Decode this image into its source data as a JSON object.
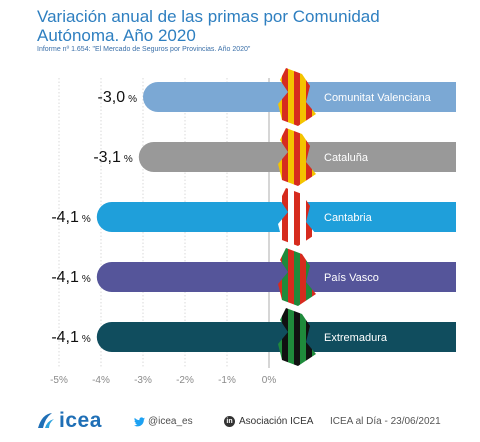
{
  "header": {
    "title": "Variación anual de las primas por Comunidad Autónoma. Año 2020",
    "subtitle": "Informe nº 1.654: \"El Mercado de Seguros por Provincias. Año 2020\""
  },
  "chart_data": {
    "type": "bar",
    "orientation": "horizontal",
    "categories": [
      "Comunitat Valenciana",
      "Cataluña",
      "Cantabria",
      "País Vasco",
      "Extremadura"
    ],
    "values": [
      -3.0,
      -3.1,
      -4.1,
      -4.1,
      -4.1
    ],
    "value_labels": [
      {
        "num": "-3,0",
        "unit": "%"
      },
      {
        "num": "-3,1",
        "unit": "%"
      },
      {
        "num": "-4,1",
        "unit": "%"
      },
      {
        "num": "-4,1",
        "unit": "%"
      },
      {
        "num": "-4,1",
        "unit": "%"
      }
    ],
    "colors": [
      "#7ba8d4",
      "#999999",
      "#1f9fda",
      "#55559a",
      "#104d5e"
    ],
    "xlim": [
      -5,
      0
    ],
    "xticks": [
      -5,
      -4,
      -3,
      -2,
      -1,
      0
    ],
    "xtick_labels": [
      "-5%",
      "-4%",
      "-3%",
      "-2%",
      "-1%",
      "0%"
    ],
    "grid": true
  },
  "footer": {
    "logo_text": "icea",
    "twitter": "@icea_es",
    "linkedin": "Asociación ICEA",
    "source_date": "ICEA al Día - 23/06/2021"
  },
  "icons": [
    "icea-logo-icon",
    "twitter-icon",
    "linkedin-icon",
    "region-map-icon"
  ]
}
